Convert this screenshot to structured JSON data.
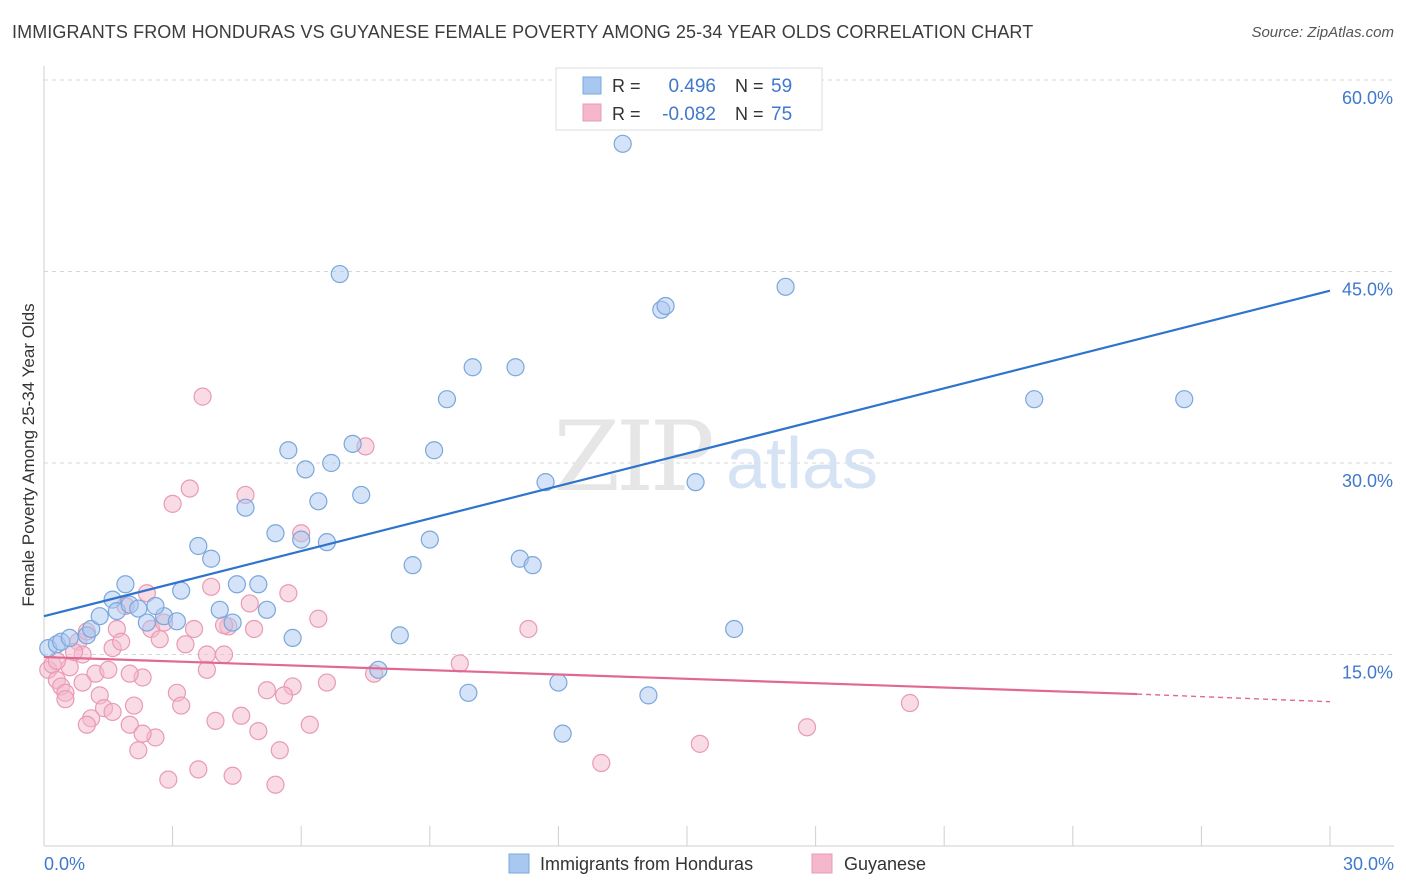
{
  "title": "IMMIGRANTS FROM HONDURAS VS GUYANESE FEMALE POVERTY AMONG 25-34 YEAR OLDS CORRELATION CHART",
  "source": "Source: ZipAtlas.com",
  "watermark": {
    "zip": "ZIP",
    "atlas": "atlas"
  },
  "colors": {
    "blue_fill": "#a9c8ef",
    "blue_stroke": "#7aa7dd",
    "blue_line": "#2f74cc",
    "pink_fill": "#f4b7cb",
    "pink_stroke": "#e99ab5",
    "pink_line": "#e06994",
    "text_blue": "#3f78cc",
    "grid": "#d7d7d7"
  },
  "stats_legend": [
    {
      "r_label": "R =",
      "r_value": "0.496",
      "n_label": "N =",
      "n_value": "59",
      "series": "honduras"
    },
    {
      "r_label": "R =",
      "r_value": "-0.082",
      "n_label": "N =",
      "n_value": "75",
      "series": "guyanese"
    }
  ],
  "chart_data": {
    "type": "scatter",
    "title": "IMMIGRANTS FROM HONDURAS VS GUYANESE FEMALE POVERTY AMONG 25-34 YEAR OLDS CORRELATION CHART",
    "xlabel": "",
    "ylabel": "Female Poverty Among 25-34 Year Olds",
    "xlim": [
      0,
      30
    ],
    "ylim": [
      0,
      60
    ],
    "x_tick_labels": [
      "0.0%",
      "30.0%"
    ],
    "y_ticks": [
      15,
      30,
      45,
      60
    ],
    "y_tick_labels": [
      "15.0%",
      "30.0%",
      "45.0%",
      "60.0%"
    ],
    "grid": true,
    "legend_position": "bottom-center",
    "series": [
      {
        "name": "Immigrants from Honduras",
        "key": "honduras",
        "trend": {
          "x": [
            0,
            30
          ],
          "y": [
            18.0,
            43.5
          ]
        },
        "points": [
          [
            0.1,
            15.5
          ],
          [
            0.3,
            15.8
          ],
          [
            0.4,
            16.0
          ],
          [
            0.6,
            16.3
          ],
          [
            1.0,
            16.5
          ],
          [
            1.1,
            17.0
          ],
          [
            1.3,
            18.0
          ],
          [
            1.6,
            19.3
          ],
          [
            1.7,
            18.4
          ],
          [
            2.0,
            18.9
          ],
          [
            2.2,
            18.6
          ],
          [
            2.4,
            17.5
          ],
          [
            2.8,
            18.0
          ],
          [
            3.1,
            17.6
          ],
          [
            3.2,
            20.0
          ],
          [
            3.6,
            23.5
          ],
          [
            3.9,
            22.5
          ],
          [
            4.1,
            18.5
          ],
          [
            4.4,
            17.5
          ],
          [
            4.5,
            20.5
          ],
          [
            4.7,
            26.5
          ],
          [
            5.0,
            20.5
          ],
          [
            5.2,
            18.5
          ],
          [
            5.4,
            24.5
          ],
          [
            5.7,
            31.0
          ],
          [
            5.8,
            16.3
          ],
          [
            6.0,
            24.0
          ],
          [
            6.1,
            29.5
          ],
          [
            6.4,
            27.0
          ],
          [
            6.6,
            23.8
          ],
          [
            6.7,
            30.0
          ],
          [
            6.9,
            44.8
          ],
          [
            7.2,
            31.5
          ],
          [
            7.4,
            27.5
          ],
          [
            7.8,
            13.8
          ],
          [
            8.3,
            16.5
          ],
          [
            8.6,
            22.0
          ],
          [
            9.0,
            24.0
          ],
          [
            9.1,
            31.0
          ],
          [
            9.4,
            35.0
          ],
          [
            9.9,
            12.0
          ],
          [
            10.0,
            37.5
          ],
          [
            11.0,
            37.5
          ],
          [
            11.1,
            22.5
          ],
          [
            11.4,
            22.0
          ],
          [
            11.7,
            28.5
          ],
          [
            12.0,
            12.8
          ],
          [
            12.1,
            8.8
          ],
          [
            13.5,
            55.0
          ],
          [
            14.1,
            11.8
          ],
          [
            14.4,
            42.0
          ],
          [
            14.5,
            42.3
          ],
          [
            15.2,
            28.5
          ],
          [
            16.1,
            17.0
          ],
          [
            17.3,
            43.8
          ],
          [
            23.1,
            35.0
          ],
          [
            26.6,
            35.0
          ],
          [
            1.9,
            20.5
          ],
          [
            2.6,
            18.8
          ]
        ]
      },
      {
        "name": "Guyanese",
        "key": "guyanese",
        "trend": {
          "x": [
            0,
            25.5
          ],
          "y": [
            14.8,
            11.9
          ]
        },
        "trend_dashed": {
          "x": [
            25.5,
            30
          ],
          "y": [
            11.9,
            11.3
          ]
        },
        "points": [
          [
            0.1,
            13.8
          ],
          [
            0.2,
            14.2
          ],
          [
            0.3,
            13.0
          ],
          [
            0.4,
            12.5
          ],
          [
            0.5,
            12.0
          ],
          [
            0.6,
            14.0
          ],
          [
            0.8,
            16.0
          ],
          [
            0.9,
            15.0
          ],
          [
            1.0,
            16.8
          ],
          [
            1.2,
            13.5
          ],
          [
            1.3,
            11.8
          ],
          [
            1.4,
            10.8
          ],
          [
            1.5,
            13.8
          ],
          [
            1.6,
            15.5
          ],
          [
            1.7,
            17.0
          ],
          [
            1.8,
            16.0
          ],
          [
            1.9,
            18.8
          ],
          [
            2.0,
            9.5
          ],
          [
            2.1,
            11.0
          ],
          [
            2.2,
            7.5
          ],
          [
            2.3,
            13.2
          ],
          [
            2.4,
            19.8
          ],
          [
            2.5,
            17.0
          ],
          [
            2.6,
            8.5
          ],
          [
            2.7,
            16.2
          ],
          [
            2.8,
            17.5
          ],
          [
            2.9,
            5.2
          ],
          [
            3.0,
            26.8
          ],
          [
            3.1,
            12.0
          ],
          [
            3.2,
            11.0
          ],
          [
            3.3,
            15.8
          ],
          [
            3.4,
            28.0
          ],
          [
            3.5,
            17.0
          ],
          [
            3.7,
            35.2
          ],
          [
            3.8,
            13.8
          ],
          [
            3.9,
            20.3
          ],
          [
            4.0,
            9.8
          ],
          [
            4.2,
            15.0
          ],
          [
            4.3,
            17.2
          ],
          [
            4.4,
            5.5
          ],
          [
            4.6,
            10.2
          ],
          [
            4.7,
            27.5
          ],
          [
            4.8,
            19.0
          ],
          [
            4.9,
            17.0
          ],
          [
            5.0,
            9.0
          ],
          [
            5.2,
            12.2
          ],
          [
            5.4,
            4.8
          ],
          [
            5.5,
            7.5
          ],
          [
            5.7,
            19.8
          ],
          [
            5.8,
            12.5
          ],
          [
            6.0,
            24.5
          ],
          [
            6.2,
            9.5
          ],
          [
            6.4,
            17.8
          ],
          [
            6.6,
            12.8
          ],
          [
            7.5,
            31.3
          ],
          [
            7.7,
            13.5
          ],
          [
            9.7,
            14.3
          ],
          [
            11.3,
            17.0
          ],
          [
            13.0,
            6.5
          ],
          [
            15.3,
            8.0
          ],
          [
            17.8,
            9.3
          ],
          [
            20.2,
            11.2
          ],
          [
            0.7,
            15.2
          ],
          [
            1.1,
            10.0
          ],
          [
            2.3,
            8.8
          ],
          [
            3.6,
            6.0
          ],
          [
            0.3,
            14.5
          ],
          [
            1.0,
            9.5
          ],
          [
            3.8,
            15.0
          ],
          [
            0.9,
            12.8
          ],
          [
            2.0,
            13.5
          ],
          [
            4.2,
            17.3
          ],
          [
            5.6,
            11.8
          ],
          [
            0.5,
            11.5
          ],
          [
            1.6,
            10.5
          ]
        ]
      }
    ]
  },
  "bottom_legend": [
    {
      "label": "Immigrants from Honduras",
      "key": "honduras"
    },
    {
      "label": "Guyanese",
      "key": "guyanese"
    }
  ]
}
